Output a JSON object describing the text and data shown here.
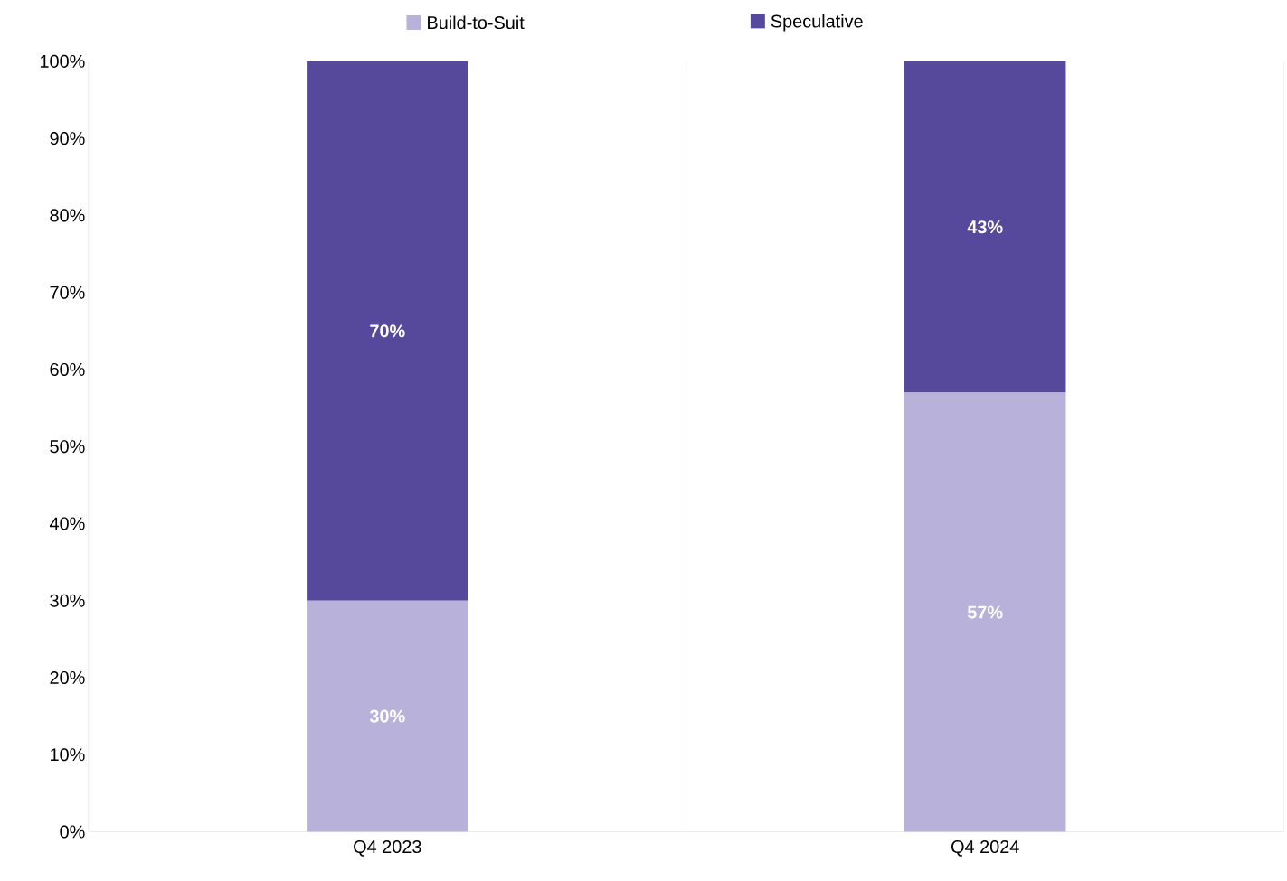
{
  "chart_data": {
    "type": "bar",
    "stacked": true,
    "categories": [
      "Q4 2023",
      "Q4 2024"
    ],
    "series": [
      {
        "name": "Build-to-Suit",
        "color": "#b8b1da",
        "values": [
          30,
          57
        ],
        "value_labels": [
          "30%",
          "57%"
        ]
      },
      {
        "name": "Speculative",
        "color": "#56499c",
        "values": [
          70,
          43
        ],
        "value_labels": [
          "70%",
          "43%"
        ]
      }
    ],
    "ylim": [
      0,
      100
    ],
    "yticks": [
      {
        "value": 0,
        "label": "0%"
      },
      {
        "value": 10,
        "label": "10%"
      },
      {
        "value": 20,
        "label": "20%"
      },
      {
        "value": 30,
        "label": "30%"
      },
      {
        "value": 40,
        "label": "40%"
      },
      {
        "value": 50,
        "label": "50%"
      },
      {
        "value": 60,
        "label": "60%"
      },
      {
        "value": 70,
        "label": "70%"
      },
      {
        "value": 80,
        "label": "80%"
      },
      {
        "value": 90,
        "label": "90%"
      },
      {
        "value": 100,
        "label": "100%"
      }
    ],
    "grid": "x",
    "legend": "top"
  }
}
